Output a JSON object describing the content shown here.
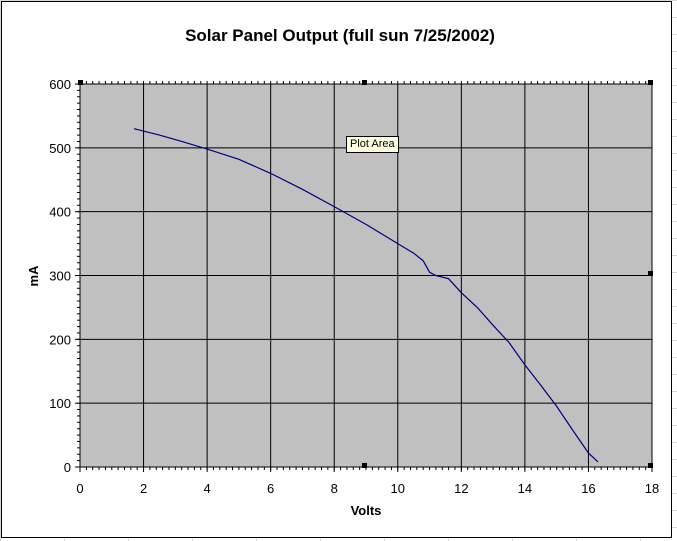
{
  "window": {
    "tooltip_text": "Plot Area"
  },
  "chart_data": {
    "type": "line",
    "title": "Solar Panel Output (full sun 7/25/2002)",
    "xlabel": "Volts",
    "ylabel": "mA",
    "xlim": [
      0,
      18
    ],
    "ylim": [
      0,
      600
    ],
    "x_ticks": [
      0,
      2,
      4,
      6,
      8,
      10,
      12,
      14,
      16,
      18
    ],
    "y_ticks": [
      0,
      100,
      200,
      300,
      400,
      500,
      600
    ],
    "grid": true,
    "legend": "none",
    "plot_background": "#c0c0c0",
    "line_color": "#000080",
    "series": [
      {
        "x": [
          1.7,
          2.5,
          3.2,
          4.0,
          5.0,
          6.0,
          7.0,
          8.0,
          9.0,
          10.0,
          10.5,
          10.8,
          11.0,
          11.2,
          11.6,
          12.0,
          12.5,
          13.0,
          13.5,
          14.0,
          14.5,
          15.0,
          15.5,
          16.0,
          16.3
        ],
        "y": [
          530,
          520,
          510,
          498,
          482,
          460,
          435,
          408,
          380,
          350,
          335,
          323,
          305,
          300,
          295,
          273,
          250,
          222,
          195,
          160,
          128,
          95,
          58,
          22,
          8
        ]
      }
    ]
  }
}
